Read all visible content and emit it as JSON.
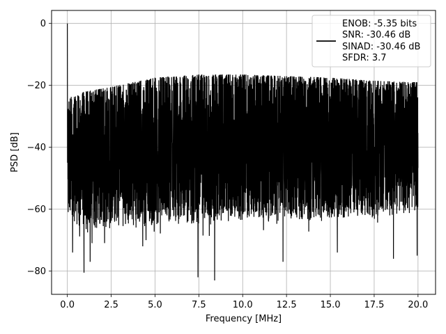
{
  "chart_data": {
    "type": "line",
    "xlabel": "Frequency [MHz]",
    "ylabel": "PSD [dB]",
    "xlim": [
      -0.9,
      21.0
    ],
    "ylim": [
      -87.5,
      4.2
    ],
    "xticks": [
      0.0,
      2.5,
      5.0,
      7.5,
      10.0,
      12.5,
      15.0,
      17.5,
      20.0
    ],
    "xtick_labels": [
      "0.0",
      "2.5",
      "5.0",
      "7.5",
      "10.0",
      "12.5",
      "15.0",
      "17.5",
      "20.0"
    ],
    "yticks": [
      0,
      -20,
      -40,
      -60,
      -80
    ],
    "ytick_labels": [
      "0",
      "−20",
      "−40",
      "−60",
      "−80"
    ],
    "grid": true,
    "legend_position": "top-right",
    "legend_lines": [
      "ENOB: -5.35 bits",
      "SNR: -30.46 dB",
      "SINAD: -30.46 dB",
      "SFDR: 3.7"
    ],
    "line_color": "#000000",
    "series": [
      {
        "x_range": [
          0.0,
          20.0
        ],
        "peak": {
          "x": 0.0,
          "y": 0.0
        },
        "upper_envelope": {
          "x": [
            0.0,
            0.1,
            1.0,
            2.5,
            5.0,
            7.5,
            10.0,
            12.5,
            15.0,
            17.5,
            20.0
          ],
          "y": [
            -30,
            -24,
            -22,
            -20.5,
            -17.5,
            -16.5,
            -16.5,
            -17,
            -17.5,
            -18.5,
            -19
          ]
        },
        "lower_envelope": {
          "x": [
            0.0,
            1.0,
            2.5,
            5.0,
            7.5,
            10.0,
            12.5,
            15.0,
            17.5,
            20.0
          ],
          "y": [
            -58,
            -62,
            -61,
            -60,
            -59,
            -58,
            -58,
            -58,
            -57,
            -56
          ]
        },
        "deep_notches": [
          {
            "x": 0.95,
            "y": -80.5
          },
          {
            "x": 7.45,
            "y": -82
          },
          {
            "x": 8.4,
            "y": -83
          },
          {
            "x": 12.3,
            "y": -77
          },
          {
            "x": 1.3,
            "y": -77
          },
          {
            "x": 19.95,
            "y": -75
          },
          {
            "x": 18.6,
            "y": -76
          },
          {
            "x": 4.3,
            "y": -72
          },
          {
            "x": 15.4,
            "y": -74
          },
          {
            "x": 0.3,
            "y": -74
          }
        ]
      }
    ]
  }
}
